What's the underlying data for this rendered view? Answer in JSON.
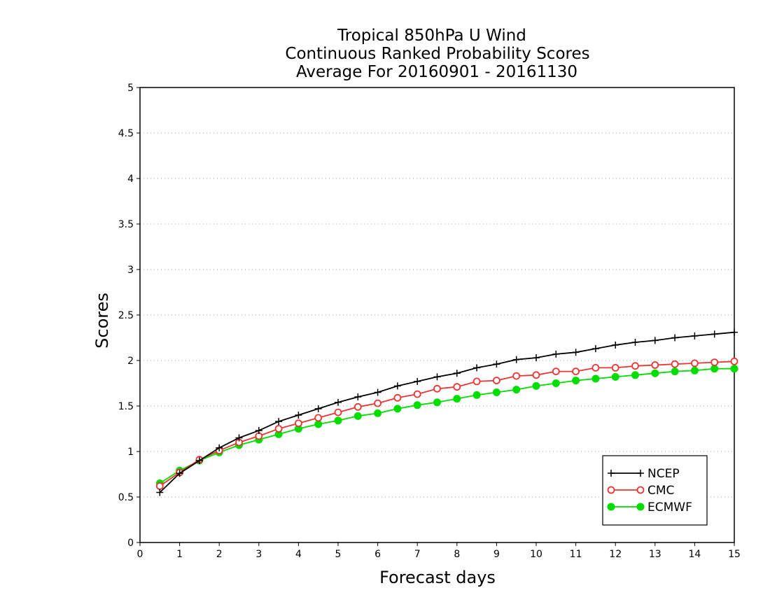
{
  "chart_data": {
    "type": "line",
    "title_lines": [
      "Tropical 850hPa U Wind",
      "Continuous Ranked Probability Scores",
      "Average For 20160901 - 20161130"
    ],
    "xlabel": "Forecast days",
    "ylabel": "Scores",
    "xlim": [
      0,
      15
    ],
    "ylim": [
      0,
      5
    ],
    "xticks": [
      0,
      1,
      2,
      3,
      4,
      5,
      6,
      7,
      8,
      9,
      10,
      11,
      12,
      13,
      14,
      15
    ],
    "yticks": [
      0,
      0.5,
      1,
      1.5,
      2,
      2.5,
      3,
      3.5,
      4,
      4.5,
      5
    ],
    "ytick_labels": [
      "0",
      "0.5",
      "1",
      "1.5",
      "2",
      "2.5",
      "3",
      "3.5",
      "4",
      "4.5",
      "5"
    ],
    "grid": "horizontal dotted",
    "legend_position": "bottom-right",
    "x": [
      0.5,
      1,
      1.5,
      2,
      2.5,
      3,
      3.5,
      4,
      4.5,
      5,
      5.5,
      6,
      6.5,
      7,
      7.5,
      8,
      8.5,
      9,
      9.5,
      10,
      10.5,
      11,
      11.5,
      12,
      12.5,
      13,
      13.5,
      14,
      14.5,
      15
    ],
    "series": [
      {
        "name": "NCEP",
        "color": "#000000",
        "marker": "plus",
        "values": [
          0.55,
          0.76,
          0.9,
          1.04,
          1.15,
          1.23,
          1.33,
          1.4,
          1.47,
          1.54,
          1.6,
          1.65,
          1.72,
          1.77,
          1.82,
          1.86,
          1.92,
          1.96,
          2.01,
          2.03,
          2.07,
          2.09,
          2.13,
          2.17,
          2.2,
          2.22,
          2.25,
          2.27,
          2.29,
          2.31
        ]
      },
      {
        "name": "CMC",
        "color": "#ee3333",
        "marker": "open-circle",
        "values": [
          0.62,
          0.77,
          0.91,
          1.01,
          1.1,
          1.17,
          1.25,
          1.31,
          1.37,
          1.43,
          1.49,
          1.53,
          1.59,
          1.63,
          1.69,
          1.71,
          1.77,
          1.78,
          1.83,
          1.84,
          1.88,
          1.88,
          1.92,
          1.92,
          1.94,
          1.95,
          1.96,
          1.97,
          1.98,
          1.99
        ]
      },
      {
        "name": "ECMWF",
        "color": "#00dd00",
        "marker": "filled-circle",
        "values": [
          0.65,
          0.79,
          0.9,
          0.99,
          1.07,
          1.13,
          1.19,
          1.25,
          1.3,
          1.34,
          1.39,
          1.42,
          1.47,
          1.51,
          1.54,
          1.58,
          1.62,
          1.65,
          1.68,
          1.72,
          1.75,
          1.78,
          1.8,
          1.82,
          1.84,
          1.86,
          1.88,
          1.89,
          1.91,
          1.91
        ]
      }
    ]
  }
}
